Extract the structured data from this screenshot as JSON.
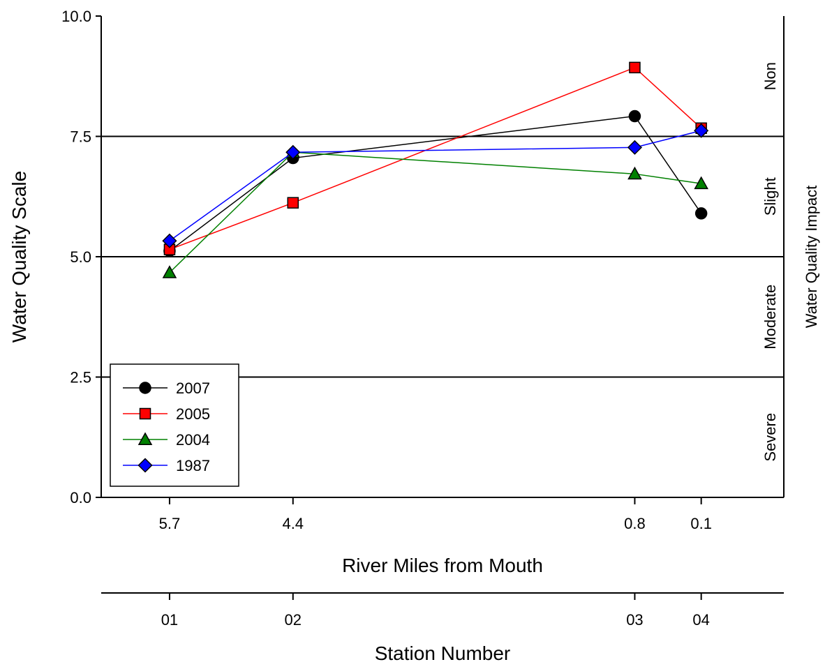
{
  "chart_data": {
    "type": "line",
    "ylabel": "Water Quality Scale",
    "y2label": "Water Quality Impact",
    "xlabel": "River Miles from Mouth",
    "x2label": "Station Number",
    "ylim": [
      0,
      10
    ],
    "xlim": [
      6.42,
      -0.77
    ],
    "yticks": [
      "0.0",
      "2.5",
      "5.0",
      "7.5",
      "10.0"
    ],
    "yticks_values": [
      0,
      2.5,
      5,
      7.5,
      10
    ],
    "threshold_lines": [
      2.5,
      5.0,
      7.5
    ],
    "categories": [
      "5.7",
      "4.4",
      "0.8",
      "0.1"
    ],
    "x": [
      5.7,
      4.4,
      0.8,
      0.1
    ],
    "stations": [
      "01",
      "02",
      "03",
      "04"
    ],
    "zones": [
      {
        "label": "Non",
        "center": 8.75
      },
      {
        "label": "Slight",
        "center": 6.25
      },
      {
        "label": "Moderate",
        "center": 3.75
      },
      {
        "label": "Severe",
        "center": 1.25
      }
    ],
    "series": [
      {
        "name": "2007",
        "color": "#000000",
        "marker": "circle",
        "values": [
          5.12,
          7.05,
          7.92,
          5.9
        ]
      },
      {
        "name": "2005",
        "color": "#ff0000",
        "marker": "square",
        "values": [
          5.15,
          6.12,
          8.93,
          7.67
        ]
      },
      {
        "name": "2004",
        "color": "#008000",
        "marker": "triangle",
        "values": [
          4.67,
          7.17,
          6.72,
          6.52
        ]
      },
      {
        "name": "1987",
        "color": "#0000ff",
        "marker": "diamond",
        "values": [
          5.33,
          7.17,
          7.27,
          7.62
        ]
      }
    ],
    "legend_position": "bottom-left"
  }
}
